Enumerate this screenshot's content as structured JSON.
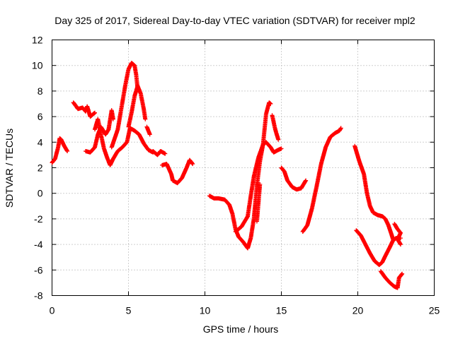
{
  "chart_data": {
    "type": "scatter",
    "title": "Day 325 of 2017, Sidereal Day-to-day VTEC variation (SDTVAR) for receiver mpl2",
    "xlabel": "GPS time / hours",
    "ylabel": "SDTVAR / TECUs",
    "xlim": [
      0,
      25
    ],
    "ylim": [
      -8,
      12
    ],
    "x_ticks": [
      0,
      5,
      10,
      15,
      20,
      25
    ],
    "x_tick_labels": [
      "0",
      "5",
      "10",
      "15",
      "20",
      "25"
    ],
    "y_ticks": [
      -8,
      -6,
      -4,
      -2,
      0,
      2,
      4,
      6,
      8,
      10,
      12
    ],
    "y_tick_labels": [
      "-8",
      "-6",
      "-4",
      "-2",
      "0",
      "2",
      "4",
      "6",
      "8",
      "10",
      "12"
    ],
    "grid": true,
    "marker": "plus",
    "series": [
      {
        "name": "SDTVAR",
        "color": "#ff0000",
        "segments": [
          [
            [
              0.0,
              2.4
            ],
            [
              0.2,
              2.7
            ],
            [
              0.4,
              3.6
            ],
            [
              0.5,
              4.3
            ],
            [
              0.6,
              4.2
            ],
            [
              0.8,
              3.7
            ],
            [
              1.0,
              3.3
            ]
          ],
          [
            [
              1.4,
              7.1
            ],
            [
              1.7,
              6.6
            ],
            [
              2.0,
              6.7
            ],
            [
              2.2,
              6.4
            ],
            [
              2.3,
              6.8
            ],
            [
              2.5,
              6.0
            ],
            [
              2.8,
              6.3
            ]
          ],
          [
            [
              2.2,
              3.3
            ],
            [
              2.5,
              3.2
            ],
            [
              2.8,
              3.6
            ],
            [
              3.0,
              4.6
            ],
            [
              3.2,
              5.2
            ],
            [
              3.5,
              4.6
            ],
            [
              3.7,
              5.0
            ],
            [
              3.9,
              6.5
            ],
            [
              4.0,
              5.8
            ]
          ],
          [
            [
              2.8,
              5.0
            ],
            [
              3.0,
              5.8
            ],
            [
              3.2,
              4.6
            ],
            [
              3.4,
              3.5
            ],
            [
              3.6,
              2.8
            ],
            [
              3.8,
              2.2
            ],
            [
              4.0,
              2.7
            ],
            [
              4.3,
              3.3
            ],
            [
              4.6,
              3.6
            ],
            [
              4.9,
              4.0
            ],
            [
              5.1,
              5.1
            ],
            [
              5.4,
              4.9
            ],
            [
              5.7,
              4.6
            ],
            [
              6.0,
              3.9
            ],
            [
              6.3,
              3.4
            ],
            [
              6.6,
              3.2
            ]
          ],
          [
            [
              3.9,
              3.6
            ],
            [
              4.1,
              4.3
            ],
            [
              4.3,
              5.0
            ],
            [
              4.5,
              6.4
            ],
            [
              4.8,
              8.5
            ],
            [
              5.0,
              9.7
            ],
            [
              5.2,
              10.2
            ],
            [
              5.4,
              10.0
            ],
            [
              5.5,
              9.3
            ],
            [
              5.6,
              8.2
            ]
          ],
          [
            [
              5.0,
              5.2
            ],
            [
              5.2,
              6.3
            ],
            [
              5.4,
              7.6
            ],
            [
              5.6,
              8.4
            ],
            [
              5.8,
              7.8
            ],
            [
              6.0,
              6.6
            ],
            [
              6.1,
              5.8
            ]
          ],
          [
            [
              6.2,
              5.2
            ],
            [
              6.4,
              4.6
            ]
          ],
          [
            [
              6.6,
              3.3
            ],
            [
              6.9,
              3.0
            ],
            [
              7.1,
              3.3
            ],
            [
              7.4,
              3.1
            ]
          ],
          [
            [
              7.2,
              2.2
            ],
            [
              7.5,
              2.3
            ],
            [
              7.8,
              1.5
            ],
            [
              7.9,
              1.0
            ],
            [
              8.2,
              0.8
            ],
            [
              8.5,
              1.2
            ],
            [
              8.8,
              2.0
            ],
            [
              9.0,
              2.6
            ],
            [
              9.2,
              2.3
            ]
          ],
          [
            [
              10.3,
              -0.2
            ],
            [
              10.6,
              -0.4
            ],
            [
              10.9,
              -0.4
            ],
            [
              11.3,
              -0.5
            ],
            [
              11.6,
              -0.9
            ],
            [
              11.8,
              -1.6
            ],
            [
              12.0,
              -2.8
            ],
            [
              12.2,
              -3.4
            ],
            [
              12.5,
              -3.8
            ],
            [
              12.8,
              -4.3
            ],
            [
              13.0,
              -3.5
            ],
            [
              13.2,
              -2.0
            ],
            [
              13.4,
              0.6
            ],
            [
              13.6,
              2.5
            ],
            [
              13.8,
              3.8
            ],
            [
              14.0,
              6.2
            ],
            [
              14.2,
              7.1
            ],
            [
              14.3,
              7.0
            ]
          ],
          [
            [
              12.0,
              -3.0
            ],
            [
              12.4,
              -2.6
            ],
            [
              12.8,
              -1.8
            ],
            [
              13.0,
              -0.2
            ],
            [
              13.2,
              1.3
            ],
            [
              13.5,
              2.8
            ],
            [
              13.8,
              3.8
            ],
            [
              14.0,
              4.0
            ],
            [
              14.3,
              3.6
            ],
            [
              14.5,
              3.2
            ],
            [
              14.8,
              3.4
            ],
            [
              15.0,
              3.5
            ]
          ],
          [
            [
              13.4,
              -2.2
            ],
            [
              13.6,
              0.7
            ]
          ],
          [
            [
              14.4,
              6.1
            ],
            [
              14.6,
              5.0
            ],
            [
              14.8,
              4.2
            ]
          ],
          [
            [
              15.0,
              2.0
            ],
            [
              15.2,
              1.7
            ],
            [
              15.4,
              1.0
            ],
            [
              15.7,
              0.5
            ],
            [
              16.0,
              0.3
            ],
            [
              16.3,
              0.4
            ],
            [
              16.5,
              0.8
            ],
            [
              16.6,
              1.0
            ]
          ],
          [
            [
              16.4,
              -3.0
            ],
            [
              16.7,
              -2.5
            ],
            [
              17.0,
              -1.2
            ],
            [
              17.3,
              0.5
            ],
            [
              17.6,
              2.3
            ],
            [
              17.9,
              3.6
            ],
            [
              18.2,
              4.4
            ],
            [
              18.5,
              4.7
            ],
            [
              18.8,
              4.9
            ],
            [
              18.9,
              5.1
            ]
          ],
          [
            [
              19.8,
              3.7
            ],
            [
              20.1,
              2.5
            ],
            [
              20.4,
              1.5
            ],
            [
              20.6,
              0.0
            ],
            [
              20.8,
              -1.0
            ],
            [
              21.0,
              -1.5
            ],
            [
              21.3,
              -1.7
            ],
            [
              21.6,
              -1.8
            ],
            [
              21.8,
              -2.0
            ],
            [
              22.0,
              -2.5
            ],
            [
              22.2,
              -3.2
            ],
            [
              22.3,
              -3.6
            ]
          ],
          [
            [
              19.9,
              -2.9
            ],
            [
              20.2,
              -3.3
            ],
            [
              20.5,
              -4.0
            ],
            [
              20.8,
              -4.7
            ],
            [
              21.1,
              -5.3
            ],
            [
              21.4,
              -5.6
            ],
            [
              21.6,
              -5.4
            ],
            [
              21.8,
              -4.9
            ],
            [
              22.1,
              -4.2
            ],
            [
              22.3,
              -3.7
            ],
            [
              22.5,
              -3.5
            ],
            [
              22.8,
              -3.5
            ]
          ],
          [
            [
              21.5,
              -6.1
            ],
            [
              21.8,
              -6.6
            ],
            [
              22.1,
              -7.0
            ],
            [
              22.4,
              -7.3
            ],
            [
              22.6,
              -7.4
            ],
            [
              22.7,
              -6.6
            ],
            [
              22.9,
              -6.3
            ]
          ],
          [
            [
              22.4,
              -2.4
            ],
            [
              22.6,
              -2.8
            ],
            [
              22.8,
              -3.1
            ],
            [
              22.6,
              -3.6
            ],
            [
              22.8,
              -4.0
            ]
          ]
        ]
      }
    ]
  }
}
